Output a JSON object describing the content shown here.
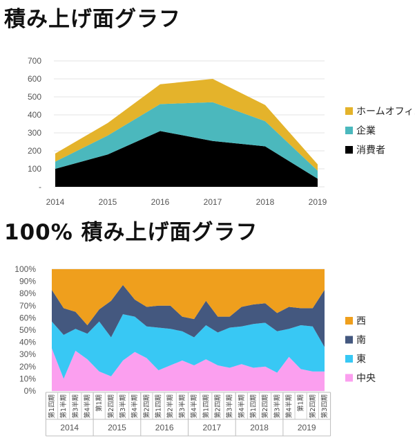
{
  "charts": {
    "area": {
      "title": "積み上げ面グラフ",
      "chart_data": {
        "type": "area",
        "stacked": true,
        "x": [
          "2014",
          "2015",
          "2016",
          "2017",
          "2018",
          "2019"
        ],
        "ylim": [
          0,
          700
        ],
        "yticks": [
          "-",
          "100",
          "200",
          "300",
          "400",
          "500",
          "600",
          "700"
        ],
        "grid": true,
        "legend_position": "right",
        "series": [
          {
            "name": "消費者",
            "color": "#000000",
            "values": [
              100,
              180,
              310,
              255,
              225,
              45
            ]
          },
          {
            "name": "企業",
            "color": "#4BB8BD",
            "values": [
              40,
              105,
              150,
              215,
              140,
              45
            ]
          },
          {
            "name": "ホームオフィス",
            "color": "#E4B32B",
            "values": [
              45,
              70,
              110,
              130,
              90,
              35
            ]
          }
        ]
      }
    },
    "percent": {
      "title": "100% 積み上げ面グラフ",
      "chart_data": {
        "type": "area",
        "stacked": "percent",
        "ylim": [
          0,
          100
        ],
        "yticks": [
          "0%",
          "10%",
          "20%",
          "30%",
          "40%",
          "50%",
          "60%",
          "70%",
          "80%",
          "90%",
          "100%"
        ],
        "grid": true,
        "legend_position": "right",
        "groups": [
          "2014",
          "2015",
          "2016",
          "2017",
          "2018",
          "2019"
        ],
        "x": [
          "第1四期",
          "第1半期",
          "第3半期",
          "第4半期",
          "第1期",
          "第2四期",
          "第3半期",
          "第4半期",
          "第2四期",
          "第1四期",
          "第2半期",
          "第3半期",
          "第4半期",
          "第1四期",
          "第2四期",
          "第3半期",
          "第4半期",
          "第1四期",
          "第2四期",
          "第3半期",
          "第4半期",
          "第1期",
          "第2四期",
          "第3四期"
        ],
        "series": [
          {
            "name": "中央",
            "color": "#FB9FEF",
            "values": [
              35,
              10,
              33,
              26,
              16,
              12,
              25,
              32,
              27,
              17,
              21,
              25,
              21,
              26,
              21,
              19,
              22,
              19,
              20,
              15,
              28,
              18,
              16,
              16
            ]
          },
          {
            "name": "東",
            "color": "#38C8F4",
            "values": [
              22,
              36,
              18,
              21,
              41,
              32,
              38,
              29,
              26,
              35,
              30,
              24,
              23,
              28,
              27,
              33,
              31,
              36,
              36,
              34,
              23,
              36,
              37,
              20
            ]
          },
          {
            "name": "南",
            "color": "#44587F",
            "values": [
              26,
              22,
              14,
              7,
              10,
              30,
              24,
              14,
              16,
              18,
              19,
              12,
              15,
              20,
              13,
              9,
              16,
              16,
              16,
              15,
              18,
              14,
              15,
              47
            ]
          },
          {
            "name": "西",
            "color": "#EF9F1D",
            "values": [
              17,
              32,
              35,
              46,
              33,
              26,
              13,
              25,
              31,
              30,
              30,
              39,
              41,
              26,
              39,
              39,
              31,
              29,
              28,
              36,
              31,
              32,
              32,
              17
            ]
          }
        ]
      }
    }
  }
}
